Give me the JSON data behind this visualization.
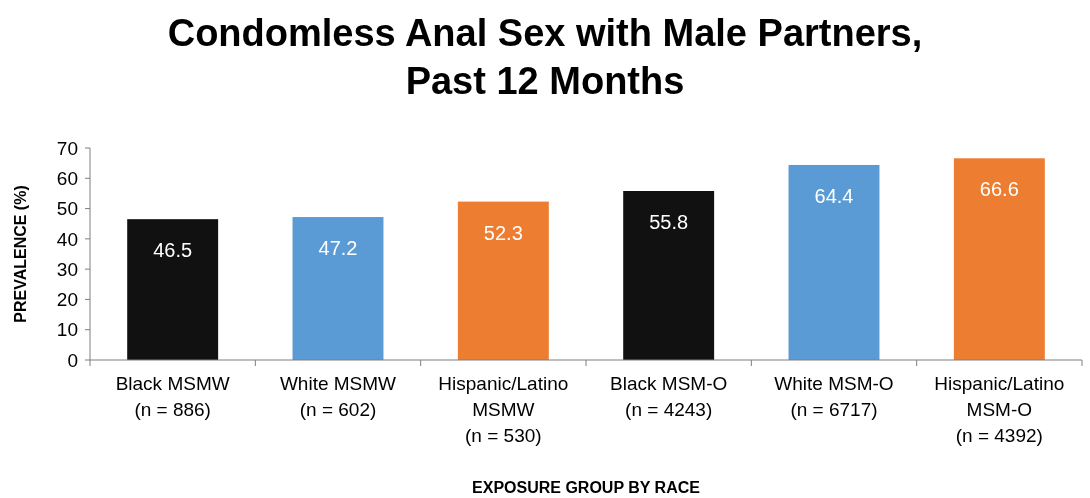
{
  "chart_data": {
    "type": "bar",
    "title": "Condomless Anal Sex with Male Partners,\nPast 12 Months",
    "xlabel": "EXPOSURE GROUP BY RACE",
    "ylabel": "PREVALENCE (%)",
    "categories": [
      "Black MSMW\n(n = 886)",
      "White MSMW\n(n = 602)",
      "Hispanic/Latino\nMSMW\n(n = 530)",
      "Black MSM-O\n(n = 4243)",
      "White MSM-O\n(n = 6717)",
      "Hispanic/Latino\nMSM-O\n(n = 4392)"
    ],
    "values": [
      46.5,
      47.2,
      52.3,
      55.8,
      64.4,
      66.6
    ],
    "colors": [
      "#111111",
      "#5b9bd5",
      "#ed7d31",
      "#111111",
      "#5b9bd5",
      "#ed7d31"
    ],
    "ylim": [
      0,
      70
    ],
    "yticks": [
      0,
      10,
      20,
      30,
      40,
      50,
      60,
      70
    ],
    "grid": false,
    "data_labels": true
  }
}
